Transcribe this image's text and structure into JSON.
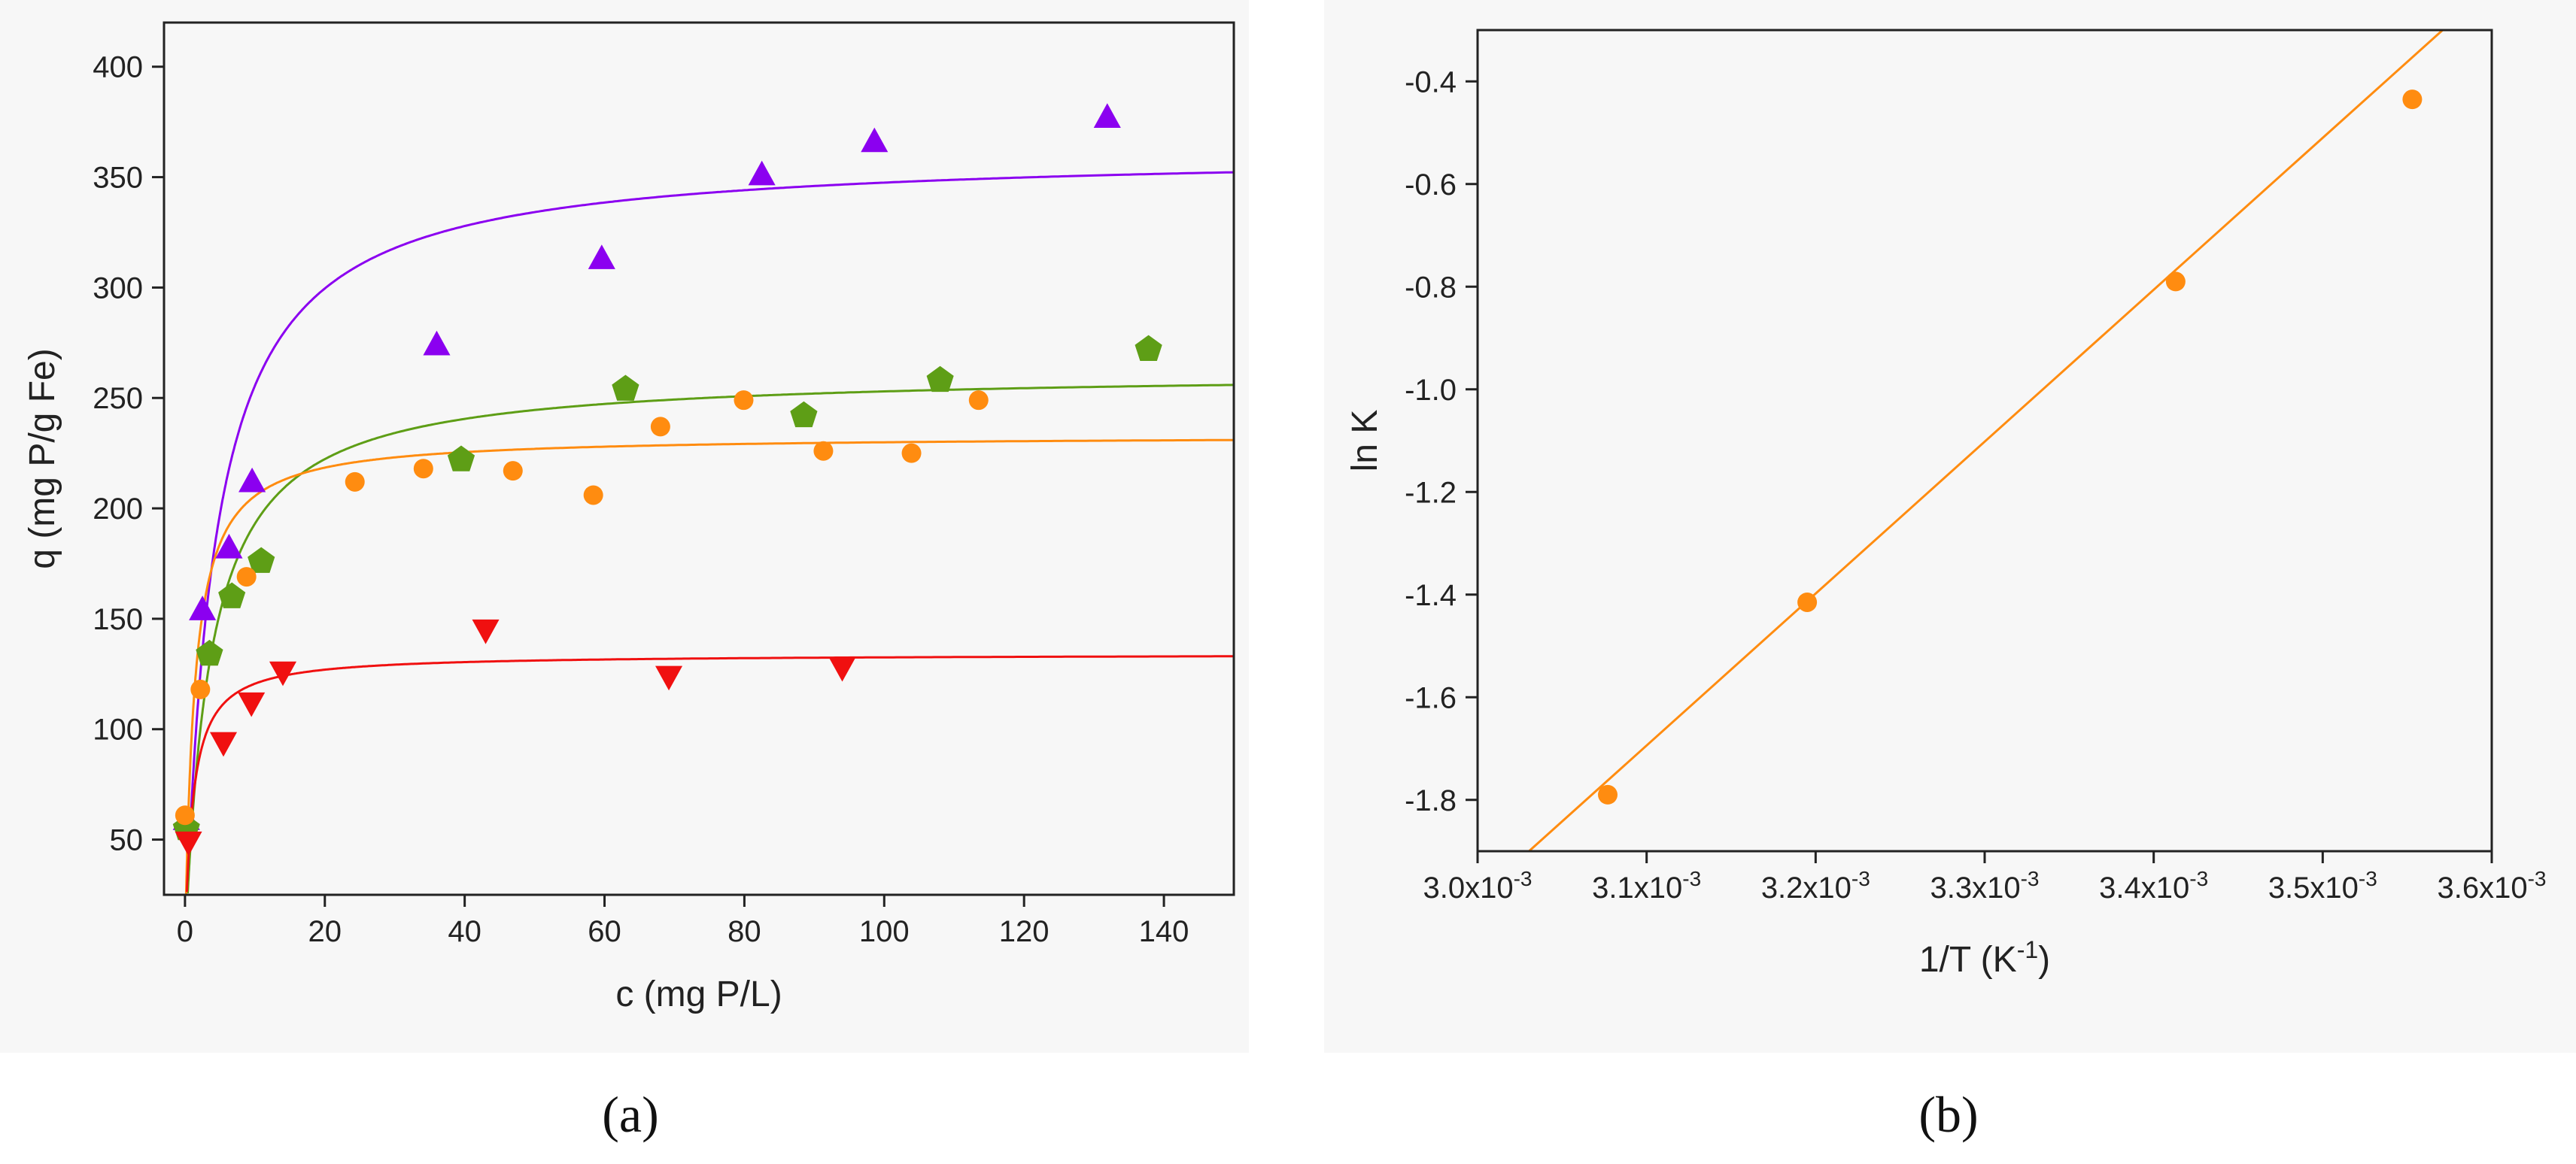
{
  "colors": {
    "purple": "#8B00F0",
    "green": "#5E9E16",
    "orange": "#FF8C10",
    "red": "#F01010",
    "axis": "#222222"
  },
  "panel_labels": {
    "a": "(a)",
    "b": "(b)"
  },
  "chart_data": [
    {
      "type": "scatter",
      "panel": "a",
      "title": "",
      "xlabel": "c (mg P/L)",
      "ylabel": "q (mg P/g Fe)",
      "xlim": [
        -3,
        150
      ],
      "ylim": [
        25,
        420
      ],
      "xticks": [
        0,
        20,
        40,
        60,
        80,
        100,
        120,
        140
      ],
      "yticks": [
        50,
        100,
        150,
        200,
        250,
        300,
        350,
        400
      ],
      "grid": false,
      "series": [
        {
          "name": "purple (up-triangle)",
          "color": "#8B00F0",
          "marker": "triangle-up",
          "x": [
            0.2,
            2.5,
            6.3,
            9.6,
            36,
            59.6,
            82.5,
            98.6,
            131.9
          ],
          "y": [
            59,
            154,
            182,
            212,
            274,
            313,
            351,
            366,
            377
          ],
          "fit": {
            "model": "langmuir",
            "qmax": 362,
            "K": 0.24
          }
        },
        {
          "name": "green (pentagon)",
          "color": "#5E9E16",
          "marker": "pentagon",
          "x": [
            0.2,
            3.5,
            6.7,
            10.9,
            39.5,
            63,
            88.5,
            108,
            137.8
          ],
          "y": [
            55,
            134,
            160,
            176,
            222,
            254,
            242,
            258,
            272
          ],
          "fit": {
            "model": "langmuir",
            "qmax": 262,
            "K": 0.28
          }
        },
        {
          "name": "orange (circle)",
          "color": "#FF8C10",
          "marker": "circle",
          "x": [
            0,
            2.2,
            8.8,
            24.3,
            34.1,
            46.9,
            58.4,
            68,
            79.9,
            91.3,
            103.9,
            113.5
          ],
          "y": [
            61,
            118,
            169,
            212,
            218,
            217,
            206,
            237,
            249,
            226,
            225,
            249
          ],
          "fit": {
            "model": "langmuir",
            "qmax": 233,
            "K": 0.75
          }
        },
        {
          "name": "red (down-triangle)",
          "color": "#F01010",
          "marker": "triangle-down",
          "x": [
            0.5,
            5.5,
            9.5,
            14,
            43,
            69.2,
            94
          ],
          "y": [
            49,
            94,
            112,
            126,
            145,
            124,
            128
          ],
          "fit": {
            "model": "langmuir",
            "qmax": 134,
            "K": 0.9
          }
        }
      ]
    },
    {
      "type": "scatter",
      "panel": "b",
      "title": "",
      "xlabel_main": "1/T (K",
      "xlabel_sup": "-1",
      "xlabel_end": ")",
      "ylabel": "ln K",
      "xlim": [
        0.003,
        0.0036
      ],
      "ylim": [
        -1.9,
        -0.3
      ],
      "xticks": [
        {
          "value": 0.003,
          "mantissa": "3.0x10",
          "exp": "-3"
        },
        {
          "value": 0.0031,
          "mantissa": "3.1x10",
          "exp": "-3"
        },
        {
          "value": 0.0032,
          "mantissa": "3.2x10",
          "exp": "-3"
        },
        {
          "value": 0.0033,
          "mantissa": "3.3x10",
          "exp": "-3"
        },
        {
          "value": 0.0034,
          "mantissa": "3.4x10",
          "exp": "-3"
        },
        {
          "value": 0.0035,
          "mantissa": "3.5x10",
          "exp": "-3"
        },
        {
          "value": 0.0036,
          "mantissa": "3.6x10",
          "exp": "-3"
        }
      ],
      "yticks": [
        {
          "value": -0.4,
          "label": "-0.4"
        },
        {
          "value": -0.6,
          "label": "-0.6"
        },
        {
          "value": -0.8,
          "label": "-0.8"
        },
        {
          "value": -1.0,
          "label": "-1.0"
        },
        {
          "value": -1.2,
          "label": "-1.2"
        },
        {
          "value": -1.4,
          "label": "-1.4"
        },
        {
          "value": -1.6,
          "label": "-1.6"
        },
        {
          "value": -1.8,
          "label": "-1.8"
        }
      ],
      "grid": false,
      "series": [
        {
          "name": "ln K vs 1/T",
          "color": "#FF8C10",
          "marker": "circle",
          "x": [
            0.003077,
            0.003195,
            0.003413,
            0.003553
          ],
          "y": [
            -1.79,
            -1.415,
            -0.79,
            -0.435
          ]
        }
      ],
      "fit_line": {
        "slope": 2960,
        "intercept": -10.87
      }
    }
  ]
}
